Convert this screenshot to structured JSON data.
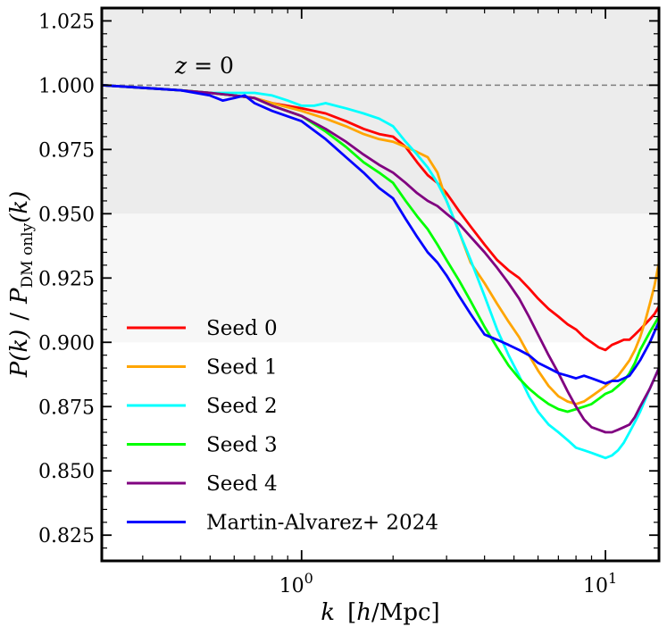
{
  "chart_data": {
    "type": "line",
    "xscale": "log",
    "xlim": [
      0.22,
      15
    ],
    "ylim": [
      0.815,
      1.03
    ],
    "xlabel_parts": {
      "var": "k",
      "unit_open": "[",
      "unit_h": "h",
      "unit_rest": "/Mpc]"
    },
    "ylabel_parts": {
      "num": "P(k)",
      "sep": "/",
      "den_main": "P",
      "den_sub": "DM only",
      "den_arg": "(k)"
    },
    "annotation": {
      "text_var": "z",
      "text_rest": " = 0",
      "x": 0.4,
      "y": 1.005
    },
    "reference_line": {
      "y": 1.0,
      "style": "dashed",
      "color": "#7f7f7f"
    },
    "bands": [
      {
        "y0": 0.95,
        "y1": 1.03,
        "color": "#ececec"
      },
      {
        "y0": 0.9,
        "y1": 0.95,
        "color": "#f7f7f7"
      }
    ],
    "x_ticks": [
      {
        "value": 1,
        "base": "10",
        "exp": "0"
      },
      {
        "value": 10,
        "base": "10",
        "exp": "1"
      }
    ],
    "y_ticks": [
      "0.825",
      "0.850",
      "0.875",
      "0.900",
      "0.925",
      "0.950",
      "0.975",
      "1.000",
      "1.025"
    ],
    "legend_position": "lower-left",
    "series": [
      {
        "name": "Seed 0",
        "color": "#ff0000",
        "x": [
          0.22,
          0.3,
          0.4,
          0.5,
          0.6,
          0.7,
          0.8,
          1.0,
          1.2,
          1.4,
          1.6,
          1.8,
          2.0,
          2.2,
          2.4,
          2.6,
          2.8,
          3.0,
          3.3,
          3.6,
          4.0,
          4.4,
          4.8,
          5.2,
          5.6,
          6.0,
          6.5,
          7.0,
          7.5,
          8.0,
          8.5,
          9.0,
          9.5,
          10.0,
          10.5,
          11.0,
          11.5,
          12.0,
          12.5,
          13.0,
          13.5,
          14.0,
          14.5,
          15.0
        ],
        "y": [
          1.0,
          0.999,
          0.998,
          0.997,
          0.996,
          0.995,
          0.993,
          0.991,
          0.989,
          0.986,
          0.983,
          0.981,
          0.98,
          0.976,
          0.97,
          0.965,
          0.962,
          0.958,
          0.951,
          0.945,
          0.938,
          0.932,
          0.928,
          0.925,
          0.921,
          0.917,
          0.913,
          0.91,
          0.907,
          0.905,
          0.902,
          0.9,
          0.898,
          0.897,
          0.899,
          0.9,
          0.901,
          0.901,
          0.903,
          0.905,
          0.907,
          0.909,
          0.911,
          0.914
        ]
      },
      {
        "name": "Seed 1",
        "color": "#ffa500",
        "x": [
          0.22,
          0.3,
          0.4,
          0.5,
          0.6,
          0.7,
          0.8,
          1.0,
          1.2,
          1.4,
          1.6,
          1.8,
          2.0,
          2.2,
          2.4,
          2.6,
          2.8,
          3.0,
          3.3,
          3.6,
          4.0,
          4.4,
          4.8,
          5.2,
          5.6,
          6.0,
          6.5,
          7.0,
          7.5,
          8.0,
          8.5,
          9.0,
          9.5,
          10.0,
          10.5,
          11.0,
          11.5,
          12.0,
          12.5,
          13.0,
          13.5,
          14.0,
          14.5,
          15.0
        ],
        "y": [
          1.0,
          0.999,
          0.998,
          0.997,
          0.996,
          0.995,
          0.993,
          0.99,
          0.987,
          0.984,
          0.981,
          0.979,
          0.978,
          0.976,
          0.974,
          0.972,
          0.966,
          0.955,
          0.943,
          0.931,
          0.923,
          0.915,
          0.908,
          0.902,
          0.895,
          0.889,
          0.883,
          0.879,
          0.877,
          0.876,
          0.877,
          0.879,
          0.881,
          0.883,
          0.885,
          0.887,
          0.89,
          0.893,
          0.897,
          0.902,
          0.908,
          0.915,
          0.922,
          0.931
        ]
      },
      {
        "name": "Seed 2",
        "color": "#00ffff",
        "x": [
          0.22,
          0.3,
          0.4,
          0.5,
          0.6,
          0.7,
          0.8,
          0.9,
          1.0,
          1.1,
          1.2,
          1.4,
          1.6,
          1.8,
          2.0,
          2.2,
          2.4,
          2.6,
          2.8,
          3.0,
          3.3,
          3.6,
          4.0,
          4.4,
          4.8,
          5.2,
          5.6,
          6.0,
          6.5,
          7.0,
          7.5,
          8.0,
          8.5,
          9.0,
          9.5,
          10.0,
          10.5,
          11.0,
          11.5,
          12.0,
          12.5,
          13.0,
          14.0,
          15.0
        ],
        "y": [
          1.0,
          0.999,
          0.998,
          0.997,
          0.997,
          0.997,
          0.996,
          0.994,
          0.992,
          0.992,
          0.993,
          0.991,
          0.989,
          0.987,
          0.984,
          0.978,
          0.973,
          0.968,
          0.962,
          0.955,
          0.943,
          0.932,
          0.918,
          0.905,
          0.895,
          0.887,
          0.879,
          0.873,
          0.868,
          0.865,
          0.862,
          0.859,
          0.858,
          0.857,
          0.856,
          0.855,
          0.856,
          0.858,
          0.861,
          0.865,
          0.869,
          0.873,
          0.882,
          0.89
        ]
      },
      {
        "name": "Seed 3",
        "color": "#00ff00",
        "x": [
          0.22,
          0.3,
          0.4,
          0.5,
          0.6,
          0.7,
          0.8,
          1.0,
          1.2,
          1.4,
          1.6,
          1.8,
          2.0,
          2.2,
          2.4,
          2.6,
          2.8,
          3.0,
          3.3,
          3.6,
          4.0,
          4.4,
          4.8,
          5.2,
          5.6,
          6.0,
          6.5,
          7.0,
          7.5,
          8.0,
          8.5,
          9.0,
          9.5,
          10.0,
          10.5,
          11.0,
          11.5,
          12.0,
          12.5,
          13.0,
          14.0,
          15.0
        ],
        "y": [
          1.0,
          0.999,
          0.998,
          0.997,
          0.996,
          0.995,
          0.992,
          0.988,
          0.982,
          0.976,
          0.97,
          0.966,
          0.962,
          0.955,
          0.949,
          0.944,
          0.938,
          0.932,
          0.924,
          0.916,
          0.906,
          0.898,
          0.891,
          0.886,
          0.882,
          0.879,
          0.876,
          0.874,
          0.873,
          0.874,
          0.875,
          0.876,
          0.878,
          0.88,
          0.881,
          0.883,
          0.885,
          0.888,
          0.892,
          0.897,
          0.904,
          0.91
        ]
      },
      {
        "name": "Seed 4",
        "color": "#800080",
        "x": [
          0.22,
          0.3,
          0.4,
          0.5,
          0.6,
          0.7,
          0.8,
          1.0,
          1.2,
          1.4,
          1.6,
          1.8,
          2.0,
          2.2,
          2.4,
          2.6,
          2.8,
          3.0,
          3.3,
          3.6,
          4.0,
          4.4,
          4.8,
          5.2,
          5.6,
          6.0,
          6.5,
          7.0,
          7.5,
          8.0,
          8.5,
          9.0,
          9.5,
          10.0,
          10.5,
          11.0,
          11.5,
          12.0,
          12.5,
          13.0,
          14.0,
          15.0
        ],
        "y": [
          1.0,
          0.999,
          0.998,
          0.997,
          0.996,
          0.995,
          0.992,
          0.988,
          0.983,
          0.978,
          0.973,
          0.969,
          0.966,
          0.962,
          0.958,
          0.955,
          0.953,
          0.95,
          0.946,
          0.941,
          0.935,
          0.929,
          0.923,
          0.917,
          0.91,
          0.903,
          0.895,
          0.888,
          0.881,
          0.875,
          0.87,
          0.867,
          0.866,
          0.865,
          0.865,
          0.866,
          0.867,
          0.868,
          0.871,
          0.875,
          0.882,
          0.89
        ]
      },
      {
        "name": "Martin-Alvarez+ 2024",
        "color": "#0000ff",
        "x": [
          0.22,
          0.3,
          0.4,
          0.5,
          0.55,
          0.6,
          0.65,
          0.7,
          0.8,
          1.0,
          1.2,
          1.4,
          1.6,
          1.8,
          2.0,
          2.2,
          2.4,
          2.6,
          2.8,
          3.0,
          3.3,
          3.6,
          4.0,
          4.4,
          4.8,
          5.2,
          5.6,
          6.0,
          6.5,
          7.0,
          7.5,
          8.0,
          8.5,
          9.0,
          9.5,
          10.0,
          10.5,
          11.0,
          11.5,
          12.0,
          12.5,
          13.0,
          14.0,
          15.0
        ],
        "y": [
          1.0,
          0.999,
          0.998,
          0.996,
          0.994,
          0.995,
          0.996,
          0.993,
          0.99,
          0.986,
          0.979,
          0.972,
          0.966,
          0.96,
          0.956,
          0.948,
          0.941,
          0.935,
          0.931,
          0.926,
          0.918,
          0.911,
          0.903,
          0.901,
          0.899,
          0.897,
          0.895,
          0.892,
          0.89,
          0.888,
          0.887,
          0.886,
          0.887,
          0.886,
          0.885,
          0.884,
          0.885,
          0.885,
          0.886,
          0.887,
          0.89,
          0.893,
          0.9,
          0.908
        ]
      }
    ]
  }
}
